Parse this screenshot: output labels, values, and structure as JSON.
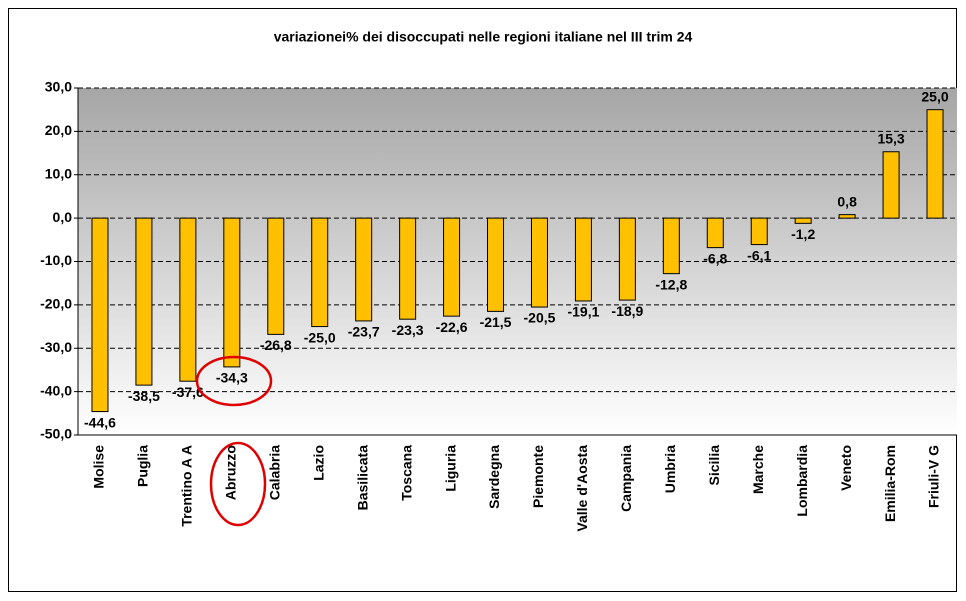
{
  "chart_data": {
    "type": "bar",
    "title": "variazionei% dei disoccupati nelle regioni italiane nel III trim 24",
    "categories": [
      "Molise",
      "Puglia",
      "Trentino A A",
      "Abruzzo",
      "Calabria",
      "Lazio",
      "Basilicata",
      "Toscana",
      "Liguria",
      "Sardegna",
      "Piemonte",
      "Valle d'Aosta",
      "Campania",
      "Umbria",
      "Sicilia",
      "Marche",
      "Lombardia",
      "Veneto",
      "Emilia-Rom",
      "Friuli-V G"
    ],
    "values": [
      -44.6,
      -38.5,
      -37.6,
      -34.3,
      -26.8,
      -25.0,
      -23.7,
      -23.3,
      -22.6,
      -21.5,
      -20.5,
      -19.1,
      -18.9,
      -12.8,
      -6.8,
      -6.1,
      -1.2,
      0.8,
      15.3,
      25.0
    ],
    "value_labels": [
      "-44,6",
      "-38,5",
      "-37,6",
      "-34,3",
      "-26,8",
      "-25,0",
      "-23,7",
      "-23,3",
      "-22,6",
      "-21,5",
      "-20,5",
      "-19,1",
      "-18,9",
      "-12,8",
      "-6,8",
      "-6,1",
      "-1,2",
      "0,8",
      "15,3",
      "25,0"
    ],
    "color": "#ffc000",
    "ylim": [
      -50,
      30
    ],
    "yticks": [
      {
        "value": -50,
        "label": "-50,0"
      },
      {
        "value": -40,
        "label": "-40,0"
      },
      {
        "value": -30,
        "label": "-30,0"
      },
      {
        "value": -20,
        "label": "-20,0"
      },
      {
        "value": -10,
        "label": "-10,0"
      },
      {
        "value": 0,
        "label": "0,0"
      },
      {
        "value": 10,
        "label": "10,0"
      },
      {
        "value": 20,
        "label": "20,0"
      },
      {
        "value": 30,
        "label": "30,0"
      }
    ],
    "grid": true
  }
}
